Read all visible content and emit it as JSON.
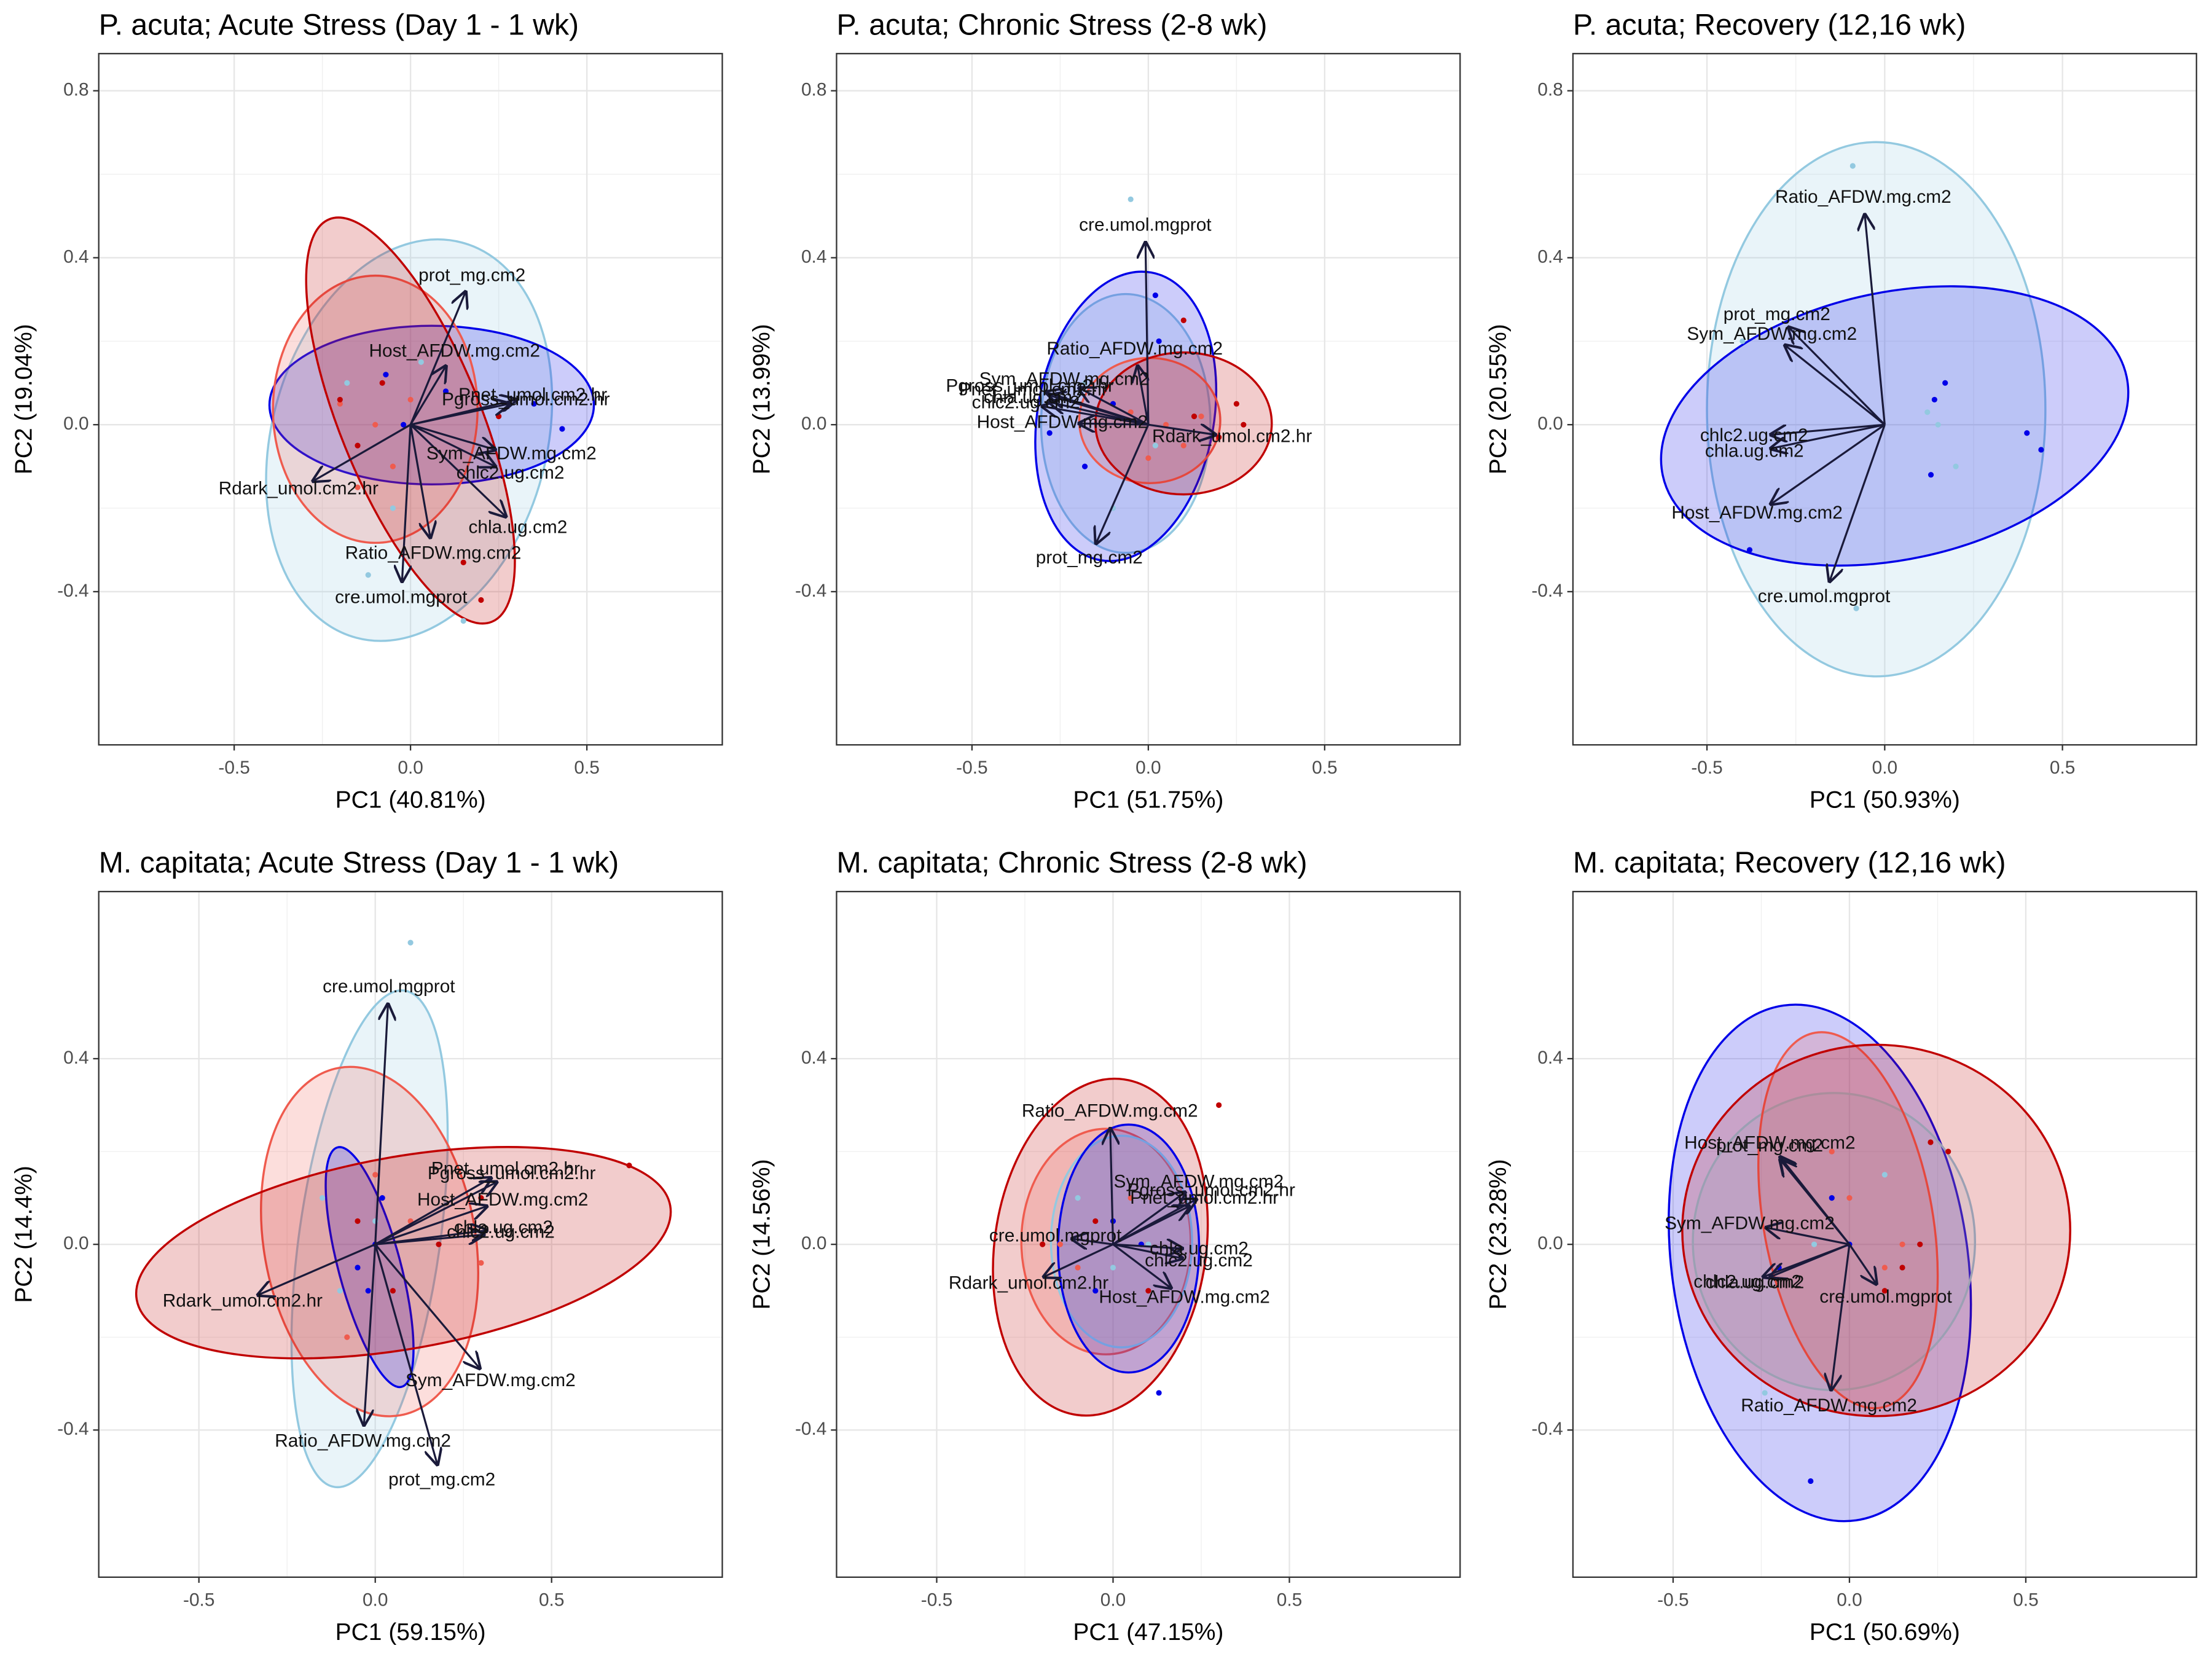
{
  "chart_data": [
    {
      "type": "biplot",
      "title": "P. acuta; Acute Stress (Day 1 - 1 wk)",
      "x_label": "PC1 (40.81%)",
      "y_label": "PC2 (19.04%)",
      "xlim": [
        -0.884,
        0.884
      ],
      "ylim": [
        -0.767,
        0.889
      ],
      "xticks": [
        -0.5,
        {
          "value": 0,
          "label": "0.0"
        },
        0.5
      ],
      "yticks": [
        -0.4,
        {
          "value": 0,
          "label": "0.0"
        },
        0.4,
        0.8
      ],
      "grid": true,
      "ellipses": [
        {
          "color": "#93c9e0",
          "x": -0.004,
          "y": -0.037,
          "a": 0.39,
          "b": 0.49,
          "angle": 15
        },
        {
          "color": "#0000e8",
          "x": 0.06,
          "y": 0.047,
          "a": 0.46,
          "b": 0.19,
          "angle": 0
        },
        {
          "color": "#ef5b4e",
          "x": -0.1,
          "y": 0.037,
          "a": 0.29,
          "b": 0.32,
          "angle": 0
        },
        {
          "color": "#c00000",
          "x": 0,
          "y": 0.01,
          "a": 0.2,
          "b": 0.52,
          "angle": -22
        }
      ],
      "points": [
        {
          "color": "#93c9e0",
          "x": [
            -0.18,
            -0.12,
            0.15,
            -0.05,
            0.03
          ],
          "y": [
            0.1,
            -0.36,
            -0.47,
            -0.2,
            0.15
          ]
        },
        {
          "color": "#0000e8",
          "x": [
            -0.07,
            0.43,
            0.35,
            0.1,
            -0.02
          ],
          "y": [
            0.12,
            -0.01,
            0.05,
            0.08,
            0
          ]
        },
        {
          "color": "#ef5b4e",
          "x": [
            -0.2,
            -0.1,
            -0.05,
            0,
            -0.15
          ],
          "y": [
            0.05,
            0,
            -0.1,
            0.06,
            -0.15
          ]
        },
        {
          "color": "#c00000",
          "x": [
            -0.2,
            -0.15,
            0.2,
            -0.08,
            0.25,
            0.15
          ],
          "y": [
            0.06,
            -0.05,
            -0.42,
            0.1,
            0.02,
            -0.33
          ]
        }
      ],
      "arrows": [
        {
          "label": "prot_mg.cm2",
          "x": 0.156,
          "y": 0.318
        },
        {
          "label": "Host_AFDW.mg.cm2",
          "x": 0.1,
          "y": 0.14
        },
        {
          "label": "Pgross_umol.cm2.hr",
          "x": 0.28,
          "y": 0.05
        },
        {
          "label": "Pnet_umol.cm2.hr",
          "x": 0.3,
          "y": 0.06
        },
        {
          "label": "Rdark_umol.cm2.hr",
          "x": -0.276,
          "y": -0.135
        },
        {
          "label": "Sym_AFDW.mg.cm2",
          "x": 0.24,
          "y": -0.06
        },
        {
          "label": "chlc2.ug.cm2",
          "x": 0.24,
          "y": -0.1
        },
        {
          "label": "chla.ug.cm2",
          "x": 0.27,
          "y": -0.22
        },
        {
          "label": "Ratio_AFDW.mg.cm2",
          "x": 0.056,
          "y": -0.27
        },
        {
          "label": "cre.umol.mgprot",
          "x": -0.024,
          "y": -0.375
        }
      ]
    },
    {
      "type": "biplot",
      "title": "P. acuta; Chronic Stress (2-8 wk)",
      "x_label": "PC1 (51.75%)",
      "y_label": "PC2 (13.99%)",
      "xlim": [
        -0.884,
        0.884
      ],
      "ylim": [
        -0.767,
        0.889
      ],
      "xticks": [
        -0.5,
        {
          "value": 0,
          "label": "0.0"
        },
        0.5
      ],
      "yticks": [
        -0.4,
        {
          "value": 0,
          "label": "0.0"
        },
        0.4,
        0.8
      ],
      "grid": true,
      "ellipses": [
        {
          "color": "#93c9e0",
          "x": -0.064,
          "y": 0.003,
          "a": 0.24,
          "b": 0.31,
          "angle": 0
        },
        {
          "color": "#0000e8",
          "x": -0.064,
          "y": 0.02,
          "a": 0.25,
          "b": 0.35,
          "angle": 10
        },
        {
          "color": "#ef5b4e",
          "x": 0.004,
          "y": 0.01,
          "a": 0.2,
          "b": 0.15,
          "angle": 0
        },
        {
          "color": "#c00000",
          "x": 0.1,
          "y": 0.003,
          "a": 0.25,
          "b": 0.17,
          "angle": 0
        }
      ],
      "points": [
        {
          "color": "#93c9e0",
          "x": [
            -0.05,
            -0.18,
            0.02,
            -0.1
          ],
          "y": [
            0.54,
            0.1,
            -0.05,
            -0.2
          ]
        },
        {
          "color": "#0000e8",
          "x": [
            0.02,
            -0.28,
            -0.1,
            -0.18,
            0.03
          ],
          "y": [
            0.31,
            -0.02,
            0.05,
            -0.1,
            0.2
          ]
        },
        {
          "color": "#ef5b4e",
          "x": [
            0.05,
            0.1,
            -0.05,
            0.15,
            0
          ],
          "y": [
            0,
            -0.05,
            0.03,
            0.02,
            -0.08
          ]
        },
        {
          "color": "#c00000",
          "x": [
            0.25,
            0.27,
            0.2,
            0.13,
            0.1
          ],
          "y": [
            0.05,
            0,
            -0.03,
            0.02,
            0.25
          ]
        }
      ],
      "arrows": [
        {
          "label": "cre.umol.mgprot",
          "x": -0.008,
          "y": 0.436
        },
        {
          "label": "Ratio_AFDW.mg.cm2",
          "x": -0.03,
          "y": 0.14
        },
        {
          "label": "Sym_AFDW.mg.cm2",
          "x": -0.196,
          "y": 0.088
        },
        {
          "label": "Pgross_umol.cm2.hr",
          "x": -0.29,
          "y": 0.078
        },
        {
          "label": "Pnet_umol.cm2.hr",
          "x": -0.28,
          "y": 0.07
        },
        {
          "label": "chlc2.ug.cm2",
          "x": -0.3,
          "y": 0.044
        },
        {
          "label": "chla.ug.cm2",
          "x": -0.28,
          "y": 0.054
        },
        {
          "label": "Host_AFDW.mg.cm2",
          "x": -0.196,
          "y": 0.003
        },
        {
          "label": "Rdark_umol.cm2.hr",
          "x": 0.19,
          "y": -0.024
        },
        {
          "label": "prot_mg.cm2",
          "x": -0.148,
          "y": -0.284
        }
      ]
    },
    {
      "type": "biplot",
      "title": "P. acuta; Recovery (12,16 wk)",
      "x_label": "PC1 (50.93%)",
      "y_label": "PC2 (20.55%)",
      "xlim": [
        -0.877,
        0.877
      ],
      "ylim": [
        -0.767,
        0.889
      ],
      "xticks": [
        -0.5,
        {
          "value": 0,
          "label": "0.0"
        },
        0.5
      ],
      "yticks": [
        -0.4,
        {
          "value": 0,
          "label": "0.0"
        },
        0.4,
        0.8
      ],
      "grid": true,
      "ellipses": [
        {
          "color": "#93c9e0",
          "x": -0.024,
          "y": 0.037,
          "a": 0.476,
          "b": 0.64,
          "angle": 0
        },
        {
          "color": "#0000e8",
          "x": 0.028,
          "y": -0.003,
          "a": 0.667,
          "b": 0.32,
          "angle": -12
        }
      ],
      "points": [
        {
          "color": "#93c9e0",
          "x": [
            -0.09,
            -0.08,
            0.12,
            0.15,
            -0.4,
            0.2
          ],
          "y": [
            0.62,
            -0.44,
            0.03,
            0,
            0.2,
            -0.1
          ]
        },
        {
          "color": "#0000e8",
          "x": [
            0.17,
            0.4,
            0.44,
            0.13,
            -0.38,
            0.14
          ],
          "y": [
            0.1,
            -0.02,
            -0.06,
            -0.12,
            -0.3,
            0.06
          ]
        }
      ],
      "arrows": [
        {
          "label": "Ratio_AFDW.mg.cm2",
          "x": -0.056,
          "y": 0.503
        },
        {
          "label": "prot_mg.cm2",
          "x": -0.27,
          "y": 0.233
        },
        {
          "label": "Sym_AFDW.mg.cm2",
          "x": -0.28,
          "y": 0.19
        },
        {
          "label": "chlc2.ug.cm2",
          "x": -0.32,
          "y": -0.024
        },
        {
          "label": "chla.ug.cm2",
          "x": -0.32,
          "y": -0.057
        },
        {
          "label": "Host_AFDW.mg.cm2",
          "x": -0.32,
          "y": -0.19
        },
        {
          "label": "cre.umol.mgprot",
          "x": -0.155,
          "y": -0.375
        }
      ]
    },
    {
      "type": "biplot",
      "title": "M. capitata; Acute Stress (Day 1 - 1 wk)",
      "x_label": "PC1 (59.15%)",
      "y_label": "PC2 (14.4%)",
      "xlim": [
        -0.784,
        0.984
      ],
      "ylim": [
        -0.717,
        0.76
      ],
      "xticks": [
        -0.5,
        {
          "value": 0,
          "label": "0.0"
        },
        0.5
      ],
      "yticks": [
        -0.4,
        {
          "value": 0,
          "label": "0.0"
        },
        0.4
      ],
      "grid": true,
      "ellipses": [
        {
          "color": "#93c9e0",
          "x": -0.016,
          "y": 0.012,
          "a": 0.2,
          "b": 0.54,
          "angle": 8
        },
        {
          "color": "#ef5b4e",
          "x": -0.016,
          "y": 0.006,
          "a": 0.3,
          "b": 0.38,
          "angle": -10
        },
        {
          "color": "#0000e8",
          "x": -0.016,
          "y": -0.049,
          "a": 0.088,
          "b": 0.267,
          "angle": -15
        },
        {
          "color": "#c00000",
          "x": 0.08,
          "y": -0.018,
          "a": 0.768,
          "b": 0.207,
          "angle": -10
        }
      ],
      "points": [
        {
          "color": "#93c9e0",
          "x": [
            0.1,
            -0.15,
            -0.1,
            0
          ],
          "y": [
            0.65,
            0.1,
            -0.1,
            0.05
          ]
        },
        {
          "color": "#0000e8",
          "x": [
            -0.05,
            0,
            -0.02,
            0.02
          ],
          "y": [
            -0.05,
            0,
            -0.1,
            0.1
          ]
        },
        {
          "color": "#ef5b4e",
          "x": [
            0.1,
            -0.08,
            0,
            0.3
          ],
          "y": [
            0.05,
            -0.2,
            0.15,
            -0.04
          ]
        },
        {
          "color": "#c00000",
          "x": [
            0.72,
            -0.05,
            0.18,
            0.05,
            0.3
          ],
          "y": [
            0.17,
            0.05,
            0,
            -0.1,
            0.1
          ]
        }
      ],
      "arrows": [
        {
          "label": "cre.umol.mgprot",
          "x": 0.036,
          "y": 0.517
        },
        {
          "label": "Pgross_umol.cm2.hr",
          "x": 0.344,
          "y": 0.134
        },
        {
          "label": "Pnet_umol.cm2.hr",
          "x": 0.328,
          "y": 0.143
        },
        {
          "label": "Host_AFDW.mg.cm2",
          "x": 0.316,
          "y": 0.082
        },
        {
          "label": "chla.ug.cm2",
          "x": 0.316,
          "y": 0.03
        },
        {
          "label": "chlc2.ug.cm2",
          "x": 0.308,
          "y": 0.021
        },
        {
          "label": "Rdark_umol.cm2.hr",
          "x": -0.332,
          "y": -0.109
        },
        {
          "label": "Sym_AFDW.mg.cm2",
          "x": 0.296,
          "y": -0.267
        },
        {
          "label": "Ratio_AFDW.mg.cm2",
          "x": -0.032,
          "y": -0.389
        },
        {
          "label": "prot_mg.cm2",
          "x": 0.176,
          "y": -0.474
        }
      ]
    },
    {
      "type": "biplot",
      "title": "M. capitata; Chronic Stress (2-8 wk)",
      "x_label": "PC1 (47.15%)",
      "y_label": "PC2 (14.56%)",
      "xlim": [
        -0.784,
        0.984
      ],
      "ylim": [
        -0.717,
        0.76
      ],
      "xticks": [
        -0.5,
        {
          "value": 0,
          "label": "0.0"
        },
        0.5
      ],
      "yticks": [
        -0.4,
        {
          "value": 0,
          "label": "0.0"
        },
        0.4
      ],
      "grid": true,
      "ellipses": [
        {
          "color": "#c00000",
          "x": -0.036,
          "y": -0.006,
          "a": 0.3,
          "b": 0.365,
          "angle": 8
        },
        {
          "color": "#ef5b4e",
          "x": -0.02,
          "y": 0.006,
          "a": 0.24,
          "b": 0.243,
          "angle": 0
        },
        {
          "color": "#93c9e0",
          "x": 0.024,
          "y": 0.006,
          "a": 0.2,
          "b": 0.228,
          "angle": 0
        },
        {
          "color": "#0000e8",
          "x": 0.044,
          "y": -0.009,
          "a": 0.2,
          "b": 0.267,
          "angle": 0
        }
      ],
      "points": [
        {
          "color": "#93c9e0",
          "x": [
            -0.1,
            0,
            0.1
          ],
          "y": [
            0.1,
            -0.05,
            0
          ]
        },
        {
          "color": "#0000e8",
          "x": [
            0.13,
            -0.05,
            0,
            0.08
          ],
          "y": [
            -0.32,
            -0.1,
            0.05,
            0
          ]
        },
        {
          "color": "#ef5b4e",
          "x": [
            -0.15,
            -0.1,
            0.05
          ],
          "y": [
            0,
            -0.05,
            0.1
          ]
        },
        {
          "color": "#c00000",
          "x": [
            0.3,
            -0.2,
            0.1,
            -0.05
          ],
          "y": [
            0.3,
            0,
            -0.1,
            0.05
          ]
        }
      ],
      "arrows": [
        {
          "label": "Ratio_AFDW.mg.cm2",
          "x": -0.008,
          "y": 0.249
        },
        {
          "label": "Sym_AFDW.mg.cm2",
          "x": 0.204,
          "y": 0.112
        },
        {
          "label": "Pgross_umol.cm2.hr",
          "x": 0.236,
          "y": 0.097
        },
        {
          "label": "Pnet_umol.cm2.hr",
          "x": 0.216,
          "y": 0.082
        },
        {
          "label": "cre.umol.mgprot",
          "x": -0.116,
          "y": 0.012
        },
        {
          "label": "chla.ug.cm2",
          "x": 0.196,
          "y": -0.009
        },
        {
          "label": "chlc2.ug.cm2",
          "x": 0.196,
          "y": -0.03
        },
        {
          "label": "Rdark_umol.cm2.hr",
          "x": -0.196,
          "y": -0.07
        },
        {
          "label": "Host_AFDW.mg.cm2",
          "x": 0.164,
          "y": -0.094
        }
      ]
    },
    {
      "type": "biplot",
      "title": "M. capitata; Recovery (12,16 wk)",
      "x_label": "PC1 (50.69%)",
      "y_label": "PC2 (23.28%)",
      "xlim": [
        -0.784,
        0.984
      ],
      "ylim": [
        -0.717,
        0.76
      ],
      "xticks": [
        -0.5,
        {
          "value": 0,
          "label": "0.0"
        },
        0.5
      ],
      "yticks": [
        -0.4,
        {
          "value": 0,
          "label": "0.0"
        },
        0.4
      ],
      "grid": true,
      "ellipses": [
        {
          "color": "#0000e8",
          "x": -0.084,
          "y": -0.04,
          "a": 0.42,
          "b": 0.56,
          "angle": -8
        },
        {
          "color": "#93c9e0",
          "x": -0.044,
          "y": 0.006,
          "a": 0.4,
          "b": 0.32,
          "angle": 0
        },
        {
          "color": "#ef5b4e",
          "x": -0.004,
          "y": 0.052,
          "a": 0.24,
          "b": 0.41,
          "angle": -10
        },
        {
          "color": "#c00000",
          "x": 0.076,
          "y": 0.03,
          "a": 0.55,
          "b": 0.4,
          "angle": 0
        }
      ],
      "points": [
        {
          "color": "#93c9e0",
          "x": [
            -0.24,
            -0.1,
            0.1
          ],
          "y": [
            -0.32,
            0,
            0.15
          ]
        },
        {
          "color": "#0000e8",
          "x": [
            -0.11,
            -0.2,
            0,
            -0.05
          ],
          "y": [
            -0.51,
            -0.05,
            0,
            0.1
          ]
        },
        {
          "color": "#ef5b4e",
          "x": [
            0,
            0.1,
            0.15,
            -0.05
          ],
          "y": [
            0.1,
            -0.05,
            0,
            0.2
          ]
        },
        {
          "color": "#c00000",
          "x": [
            0.23,
            0.28,
            0.2,
            0.1,
            0.15
          ],
          "y": [
            0.22,
            0.2,
            0,
            -0.1,
            -0.05
          ]
        }
      ],
      "arrows": [
        {
          "label": "prot_mg.cm2",
          "x": -0.196,
          "y": 0.182
        },
        {
          "label": "Host_AFDW.mg.cm2",
          "x": -0.196,
          "y": 0.188
        },
        {
          "label": "Sym_AFDW.mg.cm2",
          "x": -0.236,
          "y": 0.036
        },
        {
          "label": "chlc2.ug.cm2",
          "x": -0.244,
          "y": -0.07
        },
        {
          "label": "chla.ug.cm2",
          "x": -0.224,
          "y": -0.07
        },
        {
          "label": "cre.umol.mgprot",
          "x": 0.076,
          "y": -0.085
        },
        {
          "label": "Ratio_AFDW.mg.cm2",
          "x": -0.052,
          "y": -0.313
        }
      ]
    }
  ]
}
